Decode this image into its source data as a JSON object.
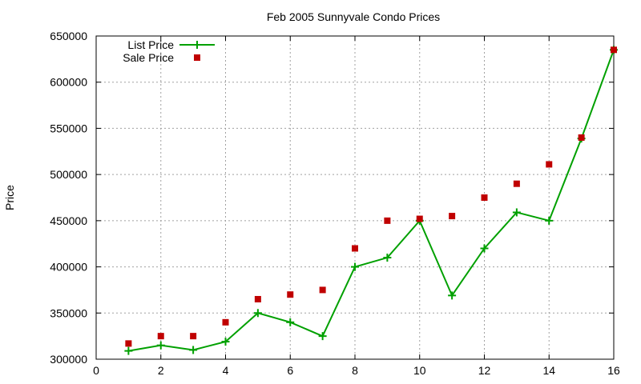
{
  "chart_data": {
    "type": "line",
    "title": "Feb 2005 Sunnyvale Condo Prices",
    "xlabel": "",
    "ylabel": "Price",
    "xlim": [
      0,
      16
    ],
    "ylim": [
      300000,
      650000
    ],
    "xticks": [
      0,
      2,
      4,
      6,
      8,
      10,
      12,
      14,
      16
    ],
    "yticks": [
      300000,
      350000,
      400000,
      450000,
      500000,
      550000,
      600000,
      650000
    ],
    "grid": true,
    "legend_position": "top-left",
    "series": [
      {
        "name": "List Price",
        "style": "line-with-plus-markers",
        "color": "#00a000",
        "x": [
          1,
          2,
          3,
          4,
          5,
          6,
          7,
          8,
          9,
          10,
          11,
          12,
          13,
          14,
          15,
          16
        ],
        "y": [
          309000,
          315000,
          310000,
          319000,
          350000,
          340000,
          325000,
          400000,
          410000,
          450000,
          369000,
          420000,
          459000,
          450000,
          539000,
          635000
        ]
      },
      {
        "name": "Sale Price",
        "style": "square-markers",
        "color": "#c00000",
        "x": [
          1,
          2,
          3,
          4,
          5,
          6,
          7,
          8,
          9,
          10,
          11,
          12,
          13,
          14,
          15,
          16
        ],
        "y": [
          317000,
          325000,
          325000,
          340000,
          365000,
          370000,
          375000,
          420000,
          450000,
          452000,
          455000,
          475000,
          490000,
          511000,
          540000,
          635000
        ]
      }
    ]
  }
}
